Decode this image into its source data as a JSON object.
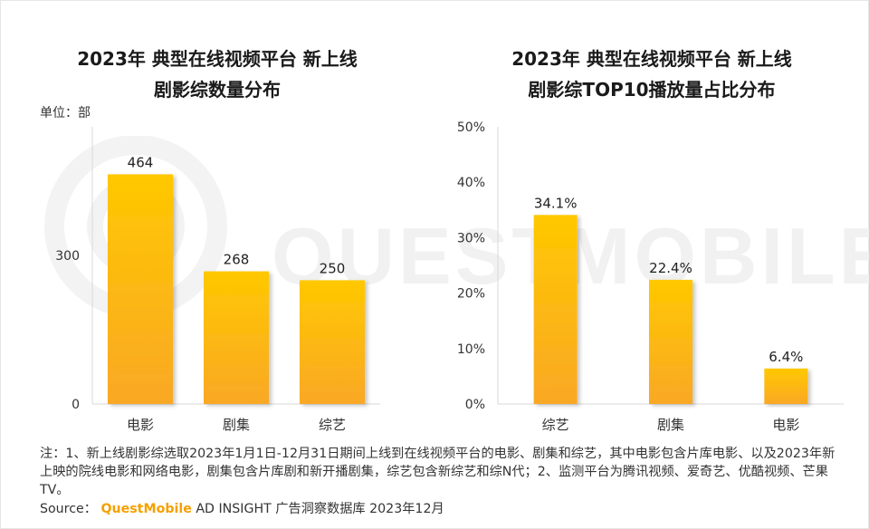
{
  "chart_data": [
    {
      "type": "bar",
      "title_line1": "2023年 典型在线视频平台 新上线",
      "title_line2": "剧影综数量分布",
      "unit": "单位：部",
      "categories": [
        "电影",
        "剧集",
        "综艺"
      ],
      "values": [
        464,
        268,
        250
      ],
      "data_labels": [
        "464",
        "268",
        "250"
      ],
      "yticks": [
        "0",
        "300"
      ],
      "ytick_values": [
        0,
        300
      ],
      "ylim": [
        0,
        560
      ],
      "bar_color_top": "#FFC800",
      "bar_color_bottom": "#F9A825"
    },
    {
      "type": "bar",
      "title_line1": "2023年 典型在线视频平台 新上线",
      "title_line2": "剧影综TOP10播放量占比分布",
      "categories": [
        "综艺",
        "剧集",
        "电影"
      ],
      "values": [
        34.1,
        22.4,
        6.4
      ],
      "data_labels": [
        "34.1%",
        "22.4%",
        "6.4%"
      ],
      "yticks": [
        "0%",
        "10%",
        "20%",
        "30%",
        "40%",
        "50%"
      ],
      "ytick_values": [
        0,
        10,
        20,
        30,
        40,
        50
      ],
      "ylim": [
        0,
        50
      ],
      "bar_color_top": "#FFC800",
      "bar_color_bottom": "#F9A825"
    }
  ],
  "note": "注：1、新上线剧影综选取2023年1月1日-12月31日期间上线到在线视频平台的电影、剧集和综艺，其中电影包含片库电影、以及2023年新上映的院线电影和网络电影，剧集包含片库剧和新开播剧集，综艺包含新综艺和综N代；2、监测平台为腾讯视频、爱奇艺、优酷视频、芒果TV。",
  "source": {
    "prefix": "Source：",
    "brand": "QuestMobile",
    "rest": " AD INSIGHT 广告洞察数据库 2023年12月"
  },
  "watermark": "QUESTMOBILE"
}
